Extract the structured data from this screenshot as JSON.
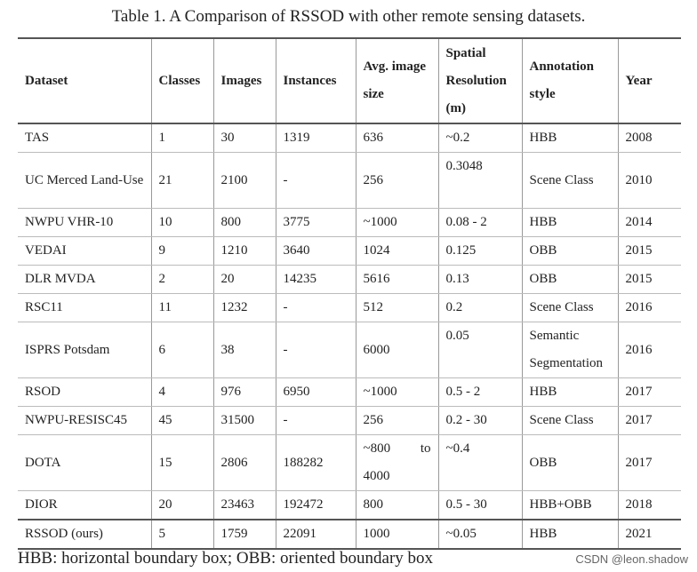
{
  "caption": "Table 1. A Comparison of RSSOD with other remote sensing datasets.",
  "table": {
    "header": [
      "Dataset",
      "Classes",
      "Images",
      "Instances",
      "Avg. image size",
      "Spatial Resolution (m)",
      "Annotation style",
      "Year"
    ],
    "rows": [
      [
        "TAS",
        "1",
        "30",
        "1319",
        "636",
        "~0.2",
        "HBB",
        "2008"
      ],
      [
        "UC Merced Land-Use",
        "21",
        "2100",
        "-",
        "256",
        "0.3048",
        "Scene Class",
        "2010"
      ],
      [
        "NWPU VHR-10",
        "10",
        "800",
        "3775",
        "~1000",
        "0.08 - 2",
        "HBB",
        "2014"
      ],
      [
        "VEDAI",
        "9",
        "1210",
        "3640",
        "1024",
        "0.125",
        "OBB",
        "2015"
      ],
      [
        "DLR MVDA",
        "2",
        "20",
        "14235",
        "5616",
        "0.13",
        "OBB",
        "2015"
      ],
      [
        "RSC11",
        "11",
        "1232",
        "-",
        "512",
        "0.2",
        "Scene Class",
        "2016"
      ],
      [
        "ISPRS Potsdam",
        "6",
        "38",
        "-",
        "6000",
        "0.05",
        "Semantic Segmentation",
        "2016"
      ],
      [
        "RSOD",
        "4",
        "976",
        "6950",
        "~1000",
        "0.5 - 2",
        "HBB",
        "2017"
      ],
      [
        "NWPU-RESISC45",
        "45",
        "31500",
        "-",
        "256",
        "0.2 - 30",
        "Scene Class",
        "2017"
      ],
      [
        "DOTA",
        "15",
        "2806",
        "188282",
        "~800 to 4000",
        "~0.4",
        "OBB",
        "2017"
      ],
      [
        "DIOR",
        "20",
        "23463",
        "192472",
        "800",
        "0.5 - 30",
        "HBB+OBB",
        "2018"
      ],
      [
        "RSSOD (ours)",
        "5",
        "1759",
        "22091",
        "1000",
        "~0.05",
        "HBB",
        "2021"
      ]
    ]
  },
  "footnote": "HBB: horizontal boundary box; OBB: oriented boundary box",
  "watermark": "CSDN @leon.shadow"
}
